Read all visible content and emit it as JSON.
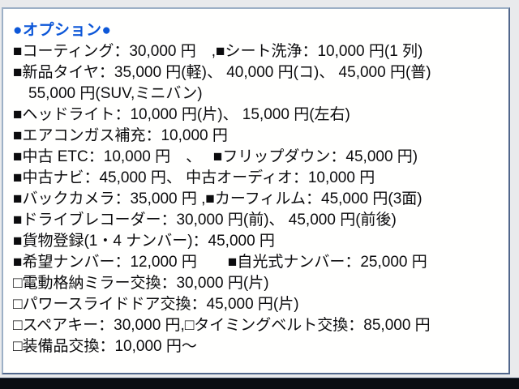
{
  "colors": {
    "accent_blue": "#0d57d8",
    "text": "#0c0c0e",
    "panel_border": "#51678c",
    "panel_border_light": "#9db0c6",
    "page_bg": "#e9eaec",
    "bottom_bar": "#0a0d12"
  },
  "panel": {
    "title": "●オプション●",
    "options": [
      "■コーティング：30,000 円　,■シート洗浄：10,000 円(1 列)",
      "■新品タイヤ：35,000 円(軽)、 40,000 円(コ)、 45,000 円(普)",
      "　55,000 円(SUV,ミニバン)",
      "■ヘッドライト：10,000 円(片)、 15,000 円(左右)",
      "■エアコンガス補充：10,000 円",
      "■中古 ETC：10,000 円　、　 ■フリップダウン：45,000 円)",
      "■中古ナビ：45,000 円、 中古オーディオ：10,000 円",
      "■バックカメラ：35,000 円 ,■カーフィルム：45,000 円(3面)",
      "■ドライブレコーダー：30,000 円(前)、 45,000 円(前後)",
      "■貨物登録(1・4 ナンバー)：45,000 円",
      "■希望ナンバー：12,000 円　　■自光式ナンバー：25,000 円",
      "□電動格納ミラー交換：30,000 円(片)",
      "□パワースライドドア交換：45,000 円(片)",
      "□スペアキー：30,000 円,□タイミングベルト交換：85,000 円",
      "□装備品交換：10,000 円～"
    ]
  }
}
